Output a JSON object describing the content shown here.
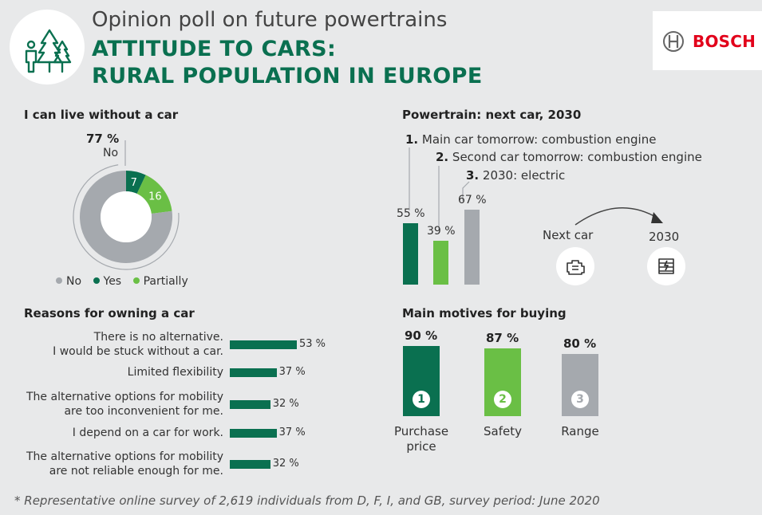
{
  "header": {
    "subtitle": "Opinion poll on future powertrains",
    "title_line1": "ATTITUDE TO CARS:",
    "title_line2": "RURAL POPULATION IN EUROPE",
    "brand": "BOSCH",
    "icon": "family-trees-icon"
  },
  "colors": {
    "green_dark": "#0a7050",
    "green_light": "#6abf45",
    "gray": "#a5a9ae",
    "red": "#e2001a"
  },
  "chart_data": [
    {
      "type": "pie",
      "title": "I can live without a car",
      "categories": [
        "No",
        "Yes",
        "Partially"
      ],
      "values": [
        77,
        7,
        16
      ],
      "unit": "%",
      "callout_value": "77 %",
      "callout_label": "No",
      "legend": [
        "No",
        "Yes",
        "Partially"
      ]
    },
    {
      "type": "bar",
      "orientation": "vertical",
      "title": "Powertrain: next car, 2030",
      "categories": [
        "Main car tomorrow: combustion engine",
        "Second car tomorrow: combustion engine",
        "2030: electric"
      ],
      "numbers": [
        "1.",
        "2.",
        "3."
      ],
      "values": [
        55,
        39,
        67
      ],
      "labels": [
        "55 %",
        "39 %",
        "67 %"
      ],
      "ylim": [
        0,
        100
      ],
      "transition": {
        "from": "Next car",
        "to": "2030",
        "from_icon": "combustion-engine-icon",
        "to_icon": "electric-battery-icon"
      }
    },
    {
      "type": "bar",
      "orientation": "horizontal",
      "title": "Reasons for owning a car",
      "categories": [
        [
          "There is no alternative.",
          "I would be stuck without a car."
        ],
        [
          "Limited flexibility"
        ],
        [
          "The alternative options for mobility",
          "are too inconvenient for me."
        ],
        [
          "I depend on a car for work."
        ],
        [
          "The alternative options for mobility",
          "are not reliable enough for me."
        ]
      ],
      "values": [
        53,
        37,
        32,
        37,
        32
      ],
      "labels": [
        "53 %",
        "37 %",
        "32 %",
        "37 %",
        "32 %"
      ],
      "xlim": [
        0,
        100
      ]
    },
    {
      "type": "bar",
      "orientation": "vertical",
      "title": "Main motives for buying",
      "categories": [
        [
          "Purchase",
          "price"
        ],
        [
          "Safety"
        ],
        [
          "Range"
        ]
      ],
      "ranks": [
        "1",
        "2",
        "3"
      ],
      "values": [
        90,
        87,
        80
      ],
      "labels": [
        "90 %",
        "87 %",
        "80 %"
      ],
      "ylim": [
        0,
        100
      ]
    }
  ],
  "footnote": "* Representative online survey of 2,619 individuals from D, F, I, and GB, survey period: June 2020"
}
